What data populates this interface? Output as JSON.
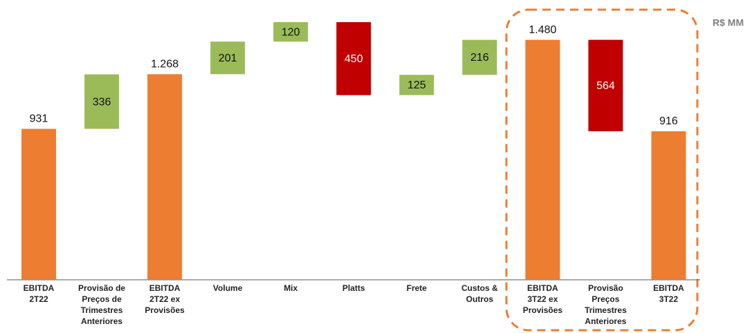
{
  "chart_data": {
    "type": "waterfall",
    "unit_label": "R$ MM",
    "categories": [
      [
        "EBITDA",
        "2T22"
      ],
      [
        "Provisão de",
        "Preços de",
        "Trimestres",
        "Anteriores"
      ],
      [
        "EBITDA",
        "2T22 ex",
        "Provisões"
      ],
      [
        "Volume"
      ],
      [
        "Mix"
      ],
      [
        "Platts"
      ],
      [
        "Frete"
      ],
      [
        "Custos &",
        "Outros"
      ],
      [
        "EBITDA",
        "3T22 ex",
        "Provisões"
      ],
      [
        "Provisão",
        "Preços",
        "Trimestres",
        "Anteriores"
      ],
      [
        "EBITDA",
        "3T22"
      ]
    ],
    "measures": [
      "total",
      "increase",
      "total",
      "increase",
      "increase",
      "decrease",
      "increase",
      "increase",
      "total",
      "decrease",
      "total"
    ],
    "values": [
      931,
      336,
      1268,
      201,
      120,
      450,
      125,
      216,
      1480,
      564,
      916
    ],
    "value_labels": [
      "931",
      "336",
      "1.268",
      "201",
      "120",
      "450",
      "125",
      "216",
      "1.480",
      "564",
      "916"
    ],
    "colors": {
      "total": "#ed7d31",
      "increase": "#9bbb59",
      "decrease": "#c00000"
    },
    "ylim": [
      0,
      1700
    ]
  }
}
